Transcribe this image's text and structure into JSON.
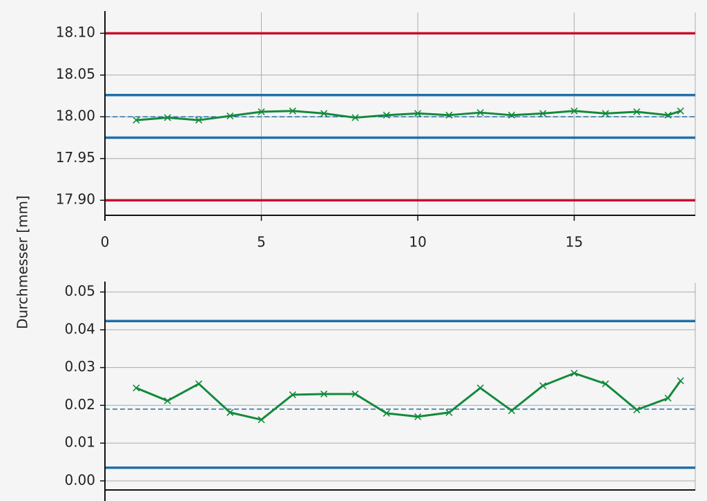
{
  "ylabel": "Durchmesser [mm]",
  "chart_data": [
    {
      "type": "line",
      "x": [
        1,
        2,
        3,
        4,
        5,
        6,
        7,
        8,
        9,
        10,
        11,
        12,
        13,
        14,
        15,
        16,
        17,
        18,
        18.4
      ],
      "values": [
        17.996,
        17.999,
        17.996,
        18.001,
        18.006,
        18.007,
        18.004,
        17.999,
        18.002,
        18.004,
        18.002,
        18.005,
        18.002,
        18.004,
        18.007,
        18.004,
        18.006,
        18.002,
        18.007
      ],
      "color": "#138a3c",
      "xlim": [
        0,
        18.87
      ],
      "xticks": [
        0,
        5,
        10,
        15
      ],
      "ylim": [
        17.882,
        18.125
      ],
      "yticks": [
        {
          "value": 17.9,
          "label": "17.90"
        },
        {
          "value": 17.95,
          "label": "17.95"
        },
        {
          "value": 18.0,
          "label": "18.00"
        },
        {
          "value": 18.05,
          "label": "18.05"
        },
        {
          "value": 18.1,
          "label": "18.10"
        }
      ],
      "xgrid": true,
      "ygrid": true,
      "hlines": [
        {
          "value": 18.1,
          "color": "#c8102e",
          "style": "solid"
        },
        {
          "value": 17.9,
          "color": "#c8102e",
          "style": "solid"
        },
        {
          "value": 18.026,
          "color": "#1f6fa8",
          "style": "solid"
        },
        {
          "value": 17.975,
          "color": "#1f6fa8",
          "style": "solid"
        },
        {
          "value": 18.0,
          "color": "#1f6fa8",
          "style": "dashed"
        }
      ]
    },
    {
      "type": "line",
      "x": [
        1,
        2,
        3,
        4,
        5,
        6,
        7,
        8,
        9,
        10,
        11,
        12,
        13,
        14,
        15,
        16,
        17,
        18,
        18.4
      ],
      "values": [
        0.0246,
        0.0212,
        0.0257,
        0.0181,
        0.0162,
        0.0228,
        0.023,
        0.023,
        0.0179,
        0.017,
        0.0181,
        0.0246,
        0.0186,
        0.0252,
        0.0285,
        0.0257,
        0.0188,
        0.0219,
        0.0265
      ],
      "color": "#138a3c",
      "xlim": [
        0,
        18.87
      ],
      "ylim": [
        -0.0024,
        0.0524
      ],
      "yticks": [
        {
          "value": 0,
          "label": "0.00"
        },
        {
          "value": 0.01,
          "label": "0.01"
        },
        {
          "value": 0.02,
          "label": "0.02"
        },
        {
          "value": 0.03,
          "label": "0.03"
        },
        {
          "value": 0.04,
          "label": "0.04"
        },
        {
          "value": 0.05,
          "label": "0.05"
        }
      ],
      "xgrid": false,
      "ygrid": true,
      "hlines": [
        {
          "value": 0.0423,
          "color": "#1f6fa8",
          "style": "solid"
        },
        {
          "value": 0.0035,
          "color": "#1f6fa8",
          "style": "solid"
        },
        {
          "value": 0.019,
          "color": "#1f6fa8",
          "style": "dashed"
        }
      ]
    }
  ]
}
